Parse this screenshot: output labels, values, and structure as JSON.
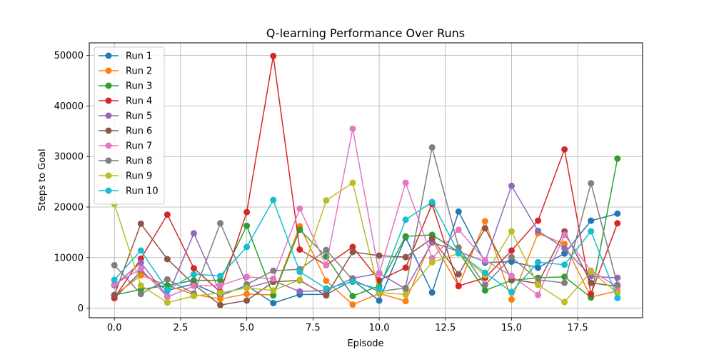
{
  "chart_data": {
    "type": "line",
    "title": "Q-learning Performance Over Runs",
    "xlabel": "Episode",
    "ylabel": "Steps to Goal",
    "xlim": [
      -0.95,
      19.95
    ],
    "ylim": [
      -1900,
      52500
    ],
    "xticks": [
      0,
      2.5,
      5,
      7.5,
      10,
      12.5,
      15,
      17.5
    ],
    "xtick_labels": [
      "0.0",
      "2.5",
      "5.0",
      "7.5",
      "10.0",
      "12.5",
      "15.0",
      "17.5"
    ],
    "yticks": [
      0,
      10000,
      20000,
      30000,
      40000,
      50000
    ],
    "ytick_labels": [
      "0",
      "10000",
      "20000",
      "30000",
      "40000",
      "50000"
    ],
    "grid": true,
    "legend_position": "top-left",
    "x": [
      0,
      1,
      2,
      3,
      4,
      5,
      6,
      7,
      8,
      9,
      10,
      11,
      12,
      13,
      14,
      15,
      16,
      17,
      18,
      19
    ],
    "series": [
      {
        "name": "Run 1",
        "color": "#1f77b4",
        "values": [
          2000,
          7200,
          3500,
          4800,
          2500,
          4500,
          1000,
          2700,
          2700,
          5500,
          1500,
          14000,
          3100,
          19100,
          9000,
          9200,
          8000,
          10800,
          17300,
          18700
        ]
      },
      {
        "name": "Run 2",
        "color": "#ff7f0e",
        "values": [
          2500,
          6500,
          4500,
          2700,
          1800,
          2800,
          2600,
          16200,
          5400,
          700,
          2900,
          1400,
          13500,
          4300,
          17200,
          1700,
          14800,
          12700,
          2200,
          3400
        ]
      },
      {
        "name": "Run 3",
        "color": "#2ca02c",
        "values": [
          2600,
          3700,
          4500,
          5500,
          5500,
          16300,
          2500,
          15500,
          10200,
          2400,
          4400,
          14200,
          14500,
          11100,
          3500,
          5500,
          6000,
          6200,
          2100,
          29600
        ]
      },
      {
        "name": "Run 4",
        "color": "#d62728",
        "values": [
          2000,
          9800,
          18500,
          7900,
          3200,
          19000,
          49900,
          11600,
          8500,
          12100,
          5500,
          8000,
          20600,
          4400,
          6000,
          11400,
          17300,
          31400,
          2800,
          16800
        ]
      },
      {
        "name": "Run 5",
        "color": "#9467bd",
        "values": [
          4500,
          9000,
          2300,
          14800,
          3000,
          4000,
          5400,
          3300,
          3500,
          5900,
          6900,
          3800,
          13000,
          11200,
          9200,
          24200,
          15300,
          11800,
          6300,
          6000
        ]
      },
      {
        "name": "Run 6",
        "color": "#8c564b",
        "values": [
          2600,
          16700,
          9700,
          4700,
          600,
          1500,
          5200,
          5500,
          2500,
          11100,
          10400,
          10100,
          13800,
          6700,
          15800,
          5700,
          4900,
          15200,
          5000,
          4300
        ]
      },
      {
        "name": "Run 7",
        "color": "#e377c2",
        "values": [
          4700,
          7800,
          2200,
          4400,
          4500,
          6200,
          5800,
          19700,
          8500,
          35500,
          6800,
          24800,
          9900,
          15500,
          9500,
          6400,
          2600,
          14500,
          7400,
          4200
        ]
      },
      {
        "name": "Run 8",
        "color": "#7f7f7f",
        "values": [
          8500,
          2800,
          5700,
          2900,
          16800,
          4700,
          7400,
          7700,
          11500,
          5600,
          3300,
          4000,
          31800,
          12000,
          4600,
          10100,
          5600,
          5000,
          24700,
          4600
        ]
      },
      {
        "name": "Run 9",
        "color": "#bcbd22",
        "values": [
          20600,
          4500,
          1100,
          2400,
          3000,
          4000,
          3500,
          5600,
          21300,
          24800,
          3100,
          2700,
          9100,
          10800,
          6500,
          15200,
          4600,
          1200,
          7200,
          3000
        ]
      },
      {
        "name": "Run 10",
        "color": "#17becf",
        "values": [
          5600,
          11400,
          3600,
          6700,
          6400,
          12100,
          21400,
          7200,
          3900,
          5200,
          3800,
          17500,
          21000,
          10900,
          7000,
          3200,
          9100,
          8600,
          15200,
          2000
        ]
      }
    ]
  }
}
